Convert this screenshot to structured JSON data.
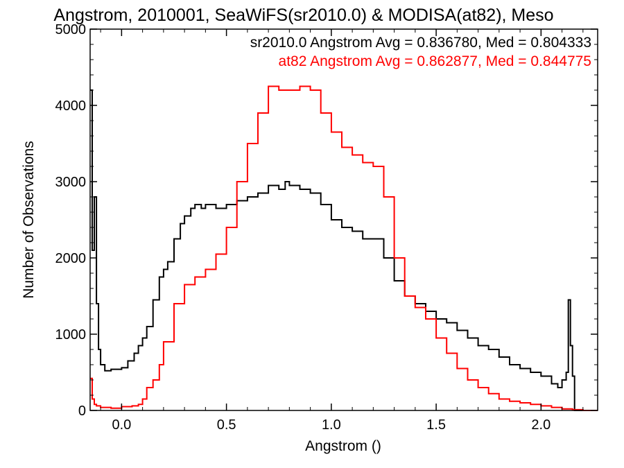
{
  "chart_data": {
    "type": "line",
    "step": true,
    "title": "Angstrom, 2010001, SeaWiFS(sr2010.0) & MODISA(at82), Meso",
    "xlabel": "Angstrom ()",
    "ylabel": "Number of Observations",
    "xlim": [
      -0.15,
      2.27
    ],
    "ylim": [
      0,
      5000
    ],
    "x_ticks": [
      0.0,
      0.5,
      1.0,
      1.5,
      2.0
    ],
    "x_tick_labels": [
      "0.0",
      "0.5",
      "1.0",
      "1.5",
      "2.0"
    ],
    "y_ticks": [
      0,
      1000,
      2000,
      3000,
      4000,
      5000
    ],
    "y_tick_labels": [
      "0",
      "1000",
      "2000",
      "3000",
      "4000",
      "5000"
    ],
    "grid": false,
    "legend_position": "top-right",
    "legend": [
      {
        "text": "sr2010.0 Angstrom Avg = 0.836780, Med = 0.804333",
        "color": "#000000"
      },
      {
        "text": "at82 Angstrom Avg = 0.862877, Med = 0.844775",
        "color": "#ff0000"
      }
    ],
    "series": [
      {
        "name": "sr2010.0",
        "color": "#000000",
        "x": [
          -0.15,
          -0.14,
          -0.13,
          -0.12,
          -0.11,
          -0.1,
          -0.08,
          -0.05,
          0.0,
          0.03,
          0.06,
          0.08,
          0.1,
          0.12,
          0.15,
          0.18,
          0.2,
          0.22,
          0.25,
          0.28,
          0.3,
          0.33,
          0.35,
          0.38,
          0.4,
          0.45,
          0.5,
          0.55,
          0.6,
          0.65,
          0.7,
          0.75,
          0.78,
          0.8,
          0.85,
          0.9,
          0.95,
          1.0,
          1.05,
          1.1,
          1.15,
          1.2,
          1.25,
          1.3,
          1.35,
          1.4,
          1.45,
          1.5,
          1.55,
          1.6,
          1.65,
          1.7,
          1.75,
          1.8,
          1.85,
          1.9,
          1.95,
          2.0,
          2.05,
          2.08,
          2.1,
          2.12,
          2.13,
          2.14,
          2.15,
          2.16,
          2.18,
          2.27
        ],
        "y": [
          4200,
          2100,
          2800,
          1400,
          800,
          600,
          520,
          540,
          560,
          650,
          750,
          850,
          950,
          1100,
          1450,
          1750,
          1850,
          1950,
          2250,
          2450,
          2550,
          2650,
          2700,
          2650,
          2700,
          2650,
          2700,
          2750,
          2800,
          2850,
          2950,
          2900,
          3000,
          2950,
          2900,
          2850,
          2700,
          2500,
          2400,
          2350,
          2250,
          2250,
          2000,
          1700,
          1500,
          1400,
          1300,
          1200,
          1150,
          1050,
          950,
          850,
          800,
          700,
          600,
          550,
          500,
          450,
          350,
          300,
          400,
          500,
          1450,
          850,
          450,
          0,
          0,
          0
        ]
      },
      {
        "name": "at82",
        "color": "#ff0000",
        "x": [
          -0.15,
          -0.14,
          -0.13,
          -0.12,
          -0.1,
          -0.05,
          0.0,
          0.05,
          0.08,
          0.1,
          0.12,
          0.15,
          0.18,
          0.2,
          0.25,
          0.3,
          0.35,
          0.4,
          0.45,
          0.5,
          0.55,
          0.6,
          0.65,
          0.7,
          0.75,
          0.8,
          0.85,
          0.9,
          0.95,
          1.0,
          1.05,
          1.1,
          1.15,
          1.2,
          1.25,
          1.3,
          1.35,
          1.4,
          1.45,
          1.5,
          1.55,
          1.6,
          1.65,
          1.7,
          1.75,
          1.8,
          1.85,
          1.9,
          1.95,
          2.0,
          2.05,
          2.1,
          2.15,
          2.2,
          2.27
        ],
        "y": [
          420,
          150,
          80,
          60,
          40,
          30,
          50,
          60,
          80,
          150,
          300,
          400,
          600,
          900,
          1400,
          1650,
          1750,
          1850,
          2050,
          2400,
          3000,
          3500,
          3900,
          4250,
          4200,
          4200,
          4250,
          4200,
          3900,
          3650,
          3450,
          3350,
          3250,
          3200,
          2800,
          2000,
          1500,
          1350,
          1200,
          950,
          750,
          550,
          400,
          300,
          220,
          150,
          120,
          100,
          80,
          60,
          40,
          20,
          10,
          0,
          0
        ]
      }
    ]
  }
}
